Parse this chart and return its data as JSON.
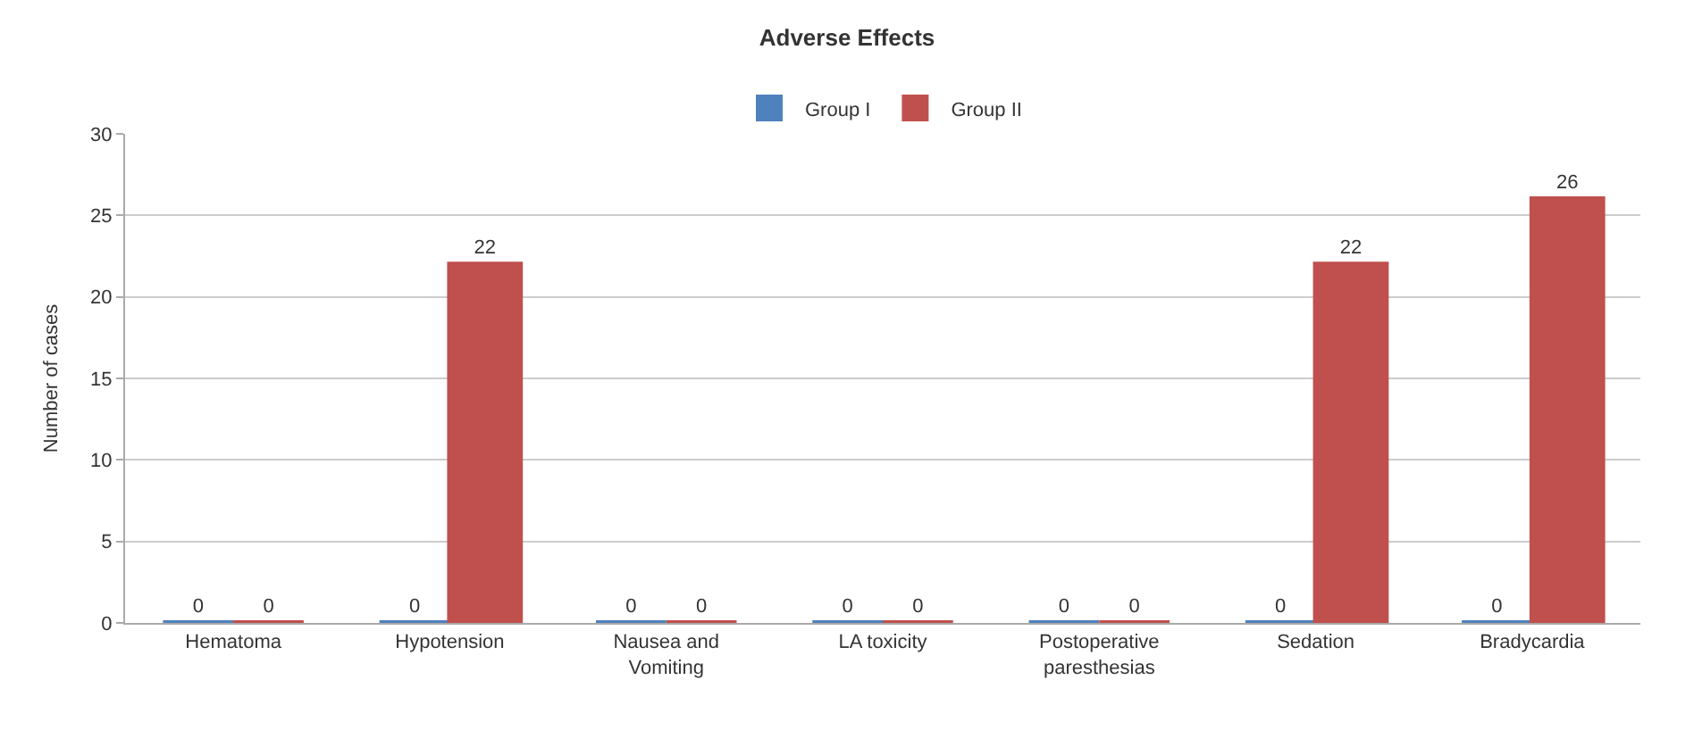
{
  "chart_data": {
    "type": "bar",
    "title": "Adverse Effects",
    "ylabel": "Number of cases",
    "categories": [
      "Hematoma",
      "Hypotension",
      "Nausea and Vomiting",
      "LA toxicity",
      "Postoperative paresthesias",
      "Sedation",
      "Bradycardia"
    ],
    "series": [
      {
        "name": "Group I",
        "color": "#4f81bd",
        "values": [
          0,
          0,
          0,
          0,
          0,
          0,
          0
        ]
      },
      {
        "name": "Group II",
        "color": "#c0504d",
        "values": [
          0,
          22,
          0,
          0,
          0,
          22,
          26
        ]
      }
    ],
    "ylim": [
      0,
      30
    ],
    "yticks": [
      0,
      5,
      10,
      15,
      20,
      25,
      30
    ],
    "grid": "y",
    "legend": "top",
    "data_labels": true
  }
}
